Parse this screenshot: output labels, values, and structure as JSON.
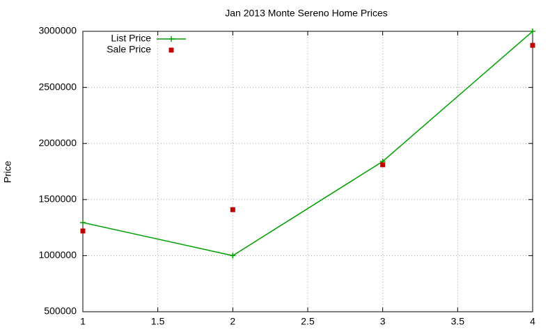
{
  "chart_data": {
    "type": "line",
    "title": "Jan 2013 Monte Sereno Home Prices",
    "y_label": "Price",
    "x": [
      1,
      2,
      3,
      4
    ],
    "series": [
      {
        "name": "List Price",
        "color": "#00a000",
        "style": "linespoints",
        "values": [
          1295000,
          1000000,
          1840000,
          3000000
        ]
      },
      {
        "name": "Sale Price",
        "color": "#c00000",
        "style": "points",
        "values": [
          1220000,
          1410000,
          1810000,
          2875000
        ]
      }
    ],
    "xlim": [
      1,
      4
    ],
    "xticks": [
      1,
      1.5,
      2,
      2.5,
      3,
      3.5,
      4
    ],
    "ylim": [
      500000,
      3000000
    ],
    "yticks": [
      500000,
      1000000,
      1500000,
      2000000,
      2500000,
      3000000
    ],
    "grid": true,
    "legend": "top-left"
  }
}
